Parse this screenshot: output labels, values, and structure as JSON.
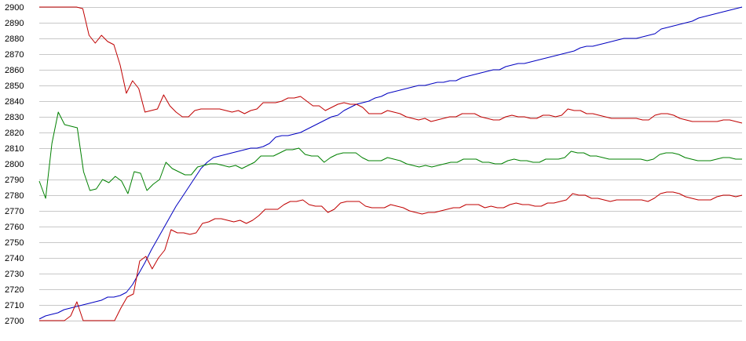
{
  "chart_data": {
    "type": "line",
    "title": "",
    "xlabel": "",
    "ylabel": "",
    "ylim": [
      2700,
      2900
    ],
    "yticks": [
      2700,
      2710,
      2720,
      2730,
      2740,
      2750,
      2760,
      2770,
      2780,
      2790,
      2800,
      2810,
      2820,
      2830,
      2840,
      2850,
      2860,
      2870,
      2880,
      2890,
      2900
    ],
    "grid": true,
    "legend": "none",
    "series": [
      {
        "color": "#0000c0",
        "values": [
          2701,
          2703,
          2704,
          2705,
          2707,
          2708,
          2709,
          2710,
          2711,
          2712,
          2713,
          2715,
          2715,
          2716,
          2718,
          2723,
          2730,
          2737,
          2745,
          2752,
          2759,
          2766,
          2773,
          2779,
          2785,
          2791,
          2797,
          2801,
          2804,
          2805,
          2806,
          2807,
          2808,
          2809,
          2810,
          2810,
          2811,
          2813,
          2817,
          2818,
          2818,
          2819,
          2820,
          2822,
          2824,
          2826,
          2828,
          2830,
          2831,
          2834,
          2836,
          2838,
          2839,
          2840,
          2842,
          2843,
          2845,
          2846,
          2847,
          2848,
          2849,
          2850,
          2850,
          2851,
          2852,
          2852,
          2853,
          2853,
          2855,
          2856,
          2857,
          2858,
          2859,
          2860,
          2860,
          2862,
          2863,
          2864,
          2864,
          2865,
          2866,
          2867,
          2868,
          2869,
          2870,
          2871,
          2872,
          2874,
          2875,
          2875,
          2876,
          2877,
          2878,
          2879,
          2880,
          2880,
          2880,
          2881,
          2882,
          2883,
          2886,
          2887,
          2888,
          2889,
          2890,
          2891,
          2893,
          2894,
          2895,
          2896,
          2897,
          2898,
          2899,
          2900
        ]
      },
      {
        "color": "#c00000",
        "values": [
          2900,
          2900,
          2900,
          2900,
          2900,
          2900,
          2900,
          2899,
          2882,
          2877,
          2882,
          2878,
          2876,
          2863,
          2845,
          2853,
          2848,
          2833,
          2834,
          2835,
          2844,
          2837,
          2833,
          2830,
          2830,
          2834,
          2835,
          2835,
          2835,
          2835,
          2834,
          2833,
          2834,
          2832,
          2834,
          2835,
          2839,
          2839,
          2839,
          2840,
          2842,
          2842,
          2843,
          2840,
          2837,
          2837,
          2834,
          2836,
          2838,
          2839,
          2838,
          2838,
          2836,
          2832,
          2832,
          2832,
          2834,
          2833,
          2832,
          2830,
          2829,
          2828,
          2829,
          2827,
          2828,
          2829,
          2830,
          2830,
          2832,
          2832,
          2832,
          2830,
          2829,
          2828,
          2828,
          2830,
          2831,
          2830,
          2830,
          2829,
          2829,
          2831,
          2831,
          2830,
          2831,
          2835,
          2834,
          2834,
          2832,
          2832,
          2831,
          2830,
          2829,
          2829,
          2829,
          2829,
          2829,
          2828,
          2828,
          2831,
          2832,
          2832,
          2831,
          2829,
          2828,
          2827,
          2827,
          2827,
          2827,
          2827,
          2828,
          2828,
          2827,
          2826
        ]
      },
      {
        "color": "#008000",
        "values": [
          2789,
          2778,
          2813,
          2833,
          2825,
          2824,
          2823,
          2795,
          2783,
          2784,
          2790,
          2788,
          2792,
          2789,
          2781,
          2795,
          2794,
          2783,
          2787,
          2790,
          2801,
          2797,
          2795,
          2793,
          2793,
          2798,
          2799,
          2800,
          2800,
          2799,
          2798,
          2799,
          2797,
          2799,
          2801,
          2805,
          2805,
          2805,
          2807,
          2809,
          2809,
          2810,
          2806,
          2805,
          2805,
          2801,
          2804,
          2806,
          2807,
          2807,
          2807,
          2804,
          2802,
          2802,
          2802,
          2804,
          2803,
          2802,
          2800,
          2799,
          2798,
          2799,
          2798,
          2799,
          2800,
          2801,
          2801,
          2803,
          2803,
          2803,
          2801,
          2801,
          2800,
          2800,
          2802,
          2803,
          2802,
          2802,
          2801,
          2801,
          2803,
          2803,
          2803,
          2804,
          2808,
          2807,
          2807,
          2805,
          2805,
          2804,
          2803,
          2803,
          2803,
          2803,
          2803,
          2803,
          2802,
          2803,
          2806,
          2807,
          2807,
          2806,
          2804,
          2803,
          2802,
          2802,
          2802,
          2803,
          2804,
          2804,
          2803,
          2803
        ]
      },
      {
        "color": "#c00000",
        "values": [
          2700,
          2700,
          2700,
          2700,
          2700,
          2703,
          2712,
          2700,
          2700,
          2700,
          2700,
          2700,
          2700,
          2708,
          2715,
          2717,
          2738,
          2741,
          2733,
          2740,
          2745,
          2758,
          2756,
          2756,
          2755,
          2756,
          2762,
          2763,
          2765,
          2765,
          2764,
          2763,
          2764,
          2762,
          2764,
          2767,
          2771,
          2771,
          2771,
          2774,
          2776,
          2776,
          2777,
          2774,
          2773,
          2773,
          2769,
          2771,
          2775,
          2776,
          2776,
          2776,
          2773,
          2772,
          2772,
          2772,
          2774,
          2773,
          2772,
          2770,
          2769,
          2768,
          2769,
          2769,
          2770,
          2771,
          2772,
          2772,
          2774,
          2774,
          2774,
          2772,
          2773,
          2772,
          2772,
          2774,
          2775,
          2774,
          2774,
          2773,
          2773,
          2775,
          2775,
          2776,
          2777,
          2781,
          2780,
          2780,
          2778,
          2778,
          2777,
          2776,
          2777,
          2777,
          2777,
          2777,
          2777,
          2776,
          2778,
          2781,
          2782,
          2782,
          2781,
          2779,
          2778,
          2777,
          2777,
          2777,
          2779,
          2780,
          2780,
          2779,
          2780
        ]
      }
    ]
  }
}
